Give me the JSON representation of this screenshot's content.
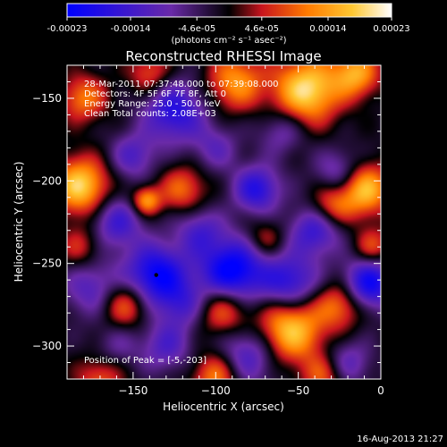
{
  "colorbar": {
    "tick_labels": [
      "-0.00023",
      "-0.00014",
      "-4.6e-05",
      "4.6e-05",
      "0.00014",
      "0.00023"
    ],
    "units_label": "(photons cm⁻² s⁻¹ asec⁻²)",
    "range": [
      -0.00023,
      0.00023
    ],
    "colors": [
      "#0000ff",
      "#6a2aa8",
      "#000000",
      "#c8141e",
      "#ff7a00",
      "#ffc832",
      "#ffffff"
    ]
  },
  "chart_data": {
    "type": "heatmap",
    "title": "Reconstructed RHESSI Image",
    "xlabel": "Heliocentric X (arcsec)",
    "ylabel": "Heliocentric Y (arcsec)",
    "xlim": [
      -190,
      0
    ],
    "ylim": [
      -320,
      -130
    ],
    "x_ticks": [
      -150,
      -100,
      -50,
      0
    ],
    "y_ticks": [
      -150,
      -200,
      -250,
      -300
    ],
    "x_tick_labels": [
      "−150",
      "−100",
      "−50",
      "0"
    ],
    "y_tick_labels": [
      "−150",
      "−200",
      "−250",
      "−300"
    ],
    "info_lines": [
      "28-Mar-2011 07:37:48.000 to 07:39:08.000",
      "Detectors: 4F 5F 6F 7F 8F, Att 0",
      "Energy Range: 25.0 - 50.0 keV",
      "Clean     Total counts: 2.08E+03"
    ],
    "peak_label": "Position of Peak = [-5,-203]",
    "marker_point": [
      -136,
      -257
    ],
    "blobs": [
      {
        "x": -90,
        "y": -255,
        "v": -1.0,
        "r": 14
      },
      {
        "x": -136,
        "y": -257,
        "v": -0.9,
        "r": 13
      },
      {
        "x": -7,
        "y": -262,
        "v": -0.85,
        "r": 11
      },
      {
        "x": -125,
        "y": -158,
        "v": -0.7,
        "r": 13
      },
      {
        "x": -55,
        "y": -262,
        "v": -0.7,
        "r": 12
      },
      {
        "x": -75,
        "y": -205,
        "v": -0.7,
        "r": 10
      },
      {
        "x": -160,
        "y": -225,
        "v": -0.55,
        "r": 11
      },
      {
        "x": -40,
        "y": -230,
        "v": -0.6,
        "r": 11
      },
      {
        "x": -80,
        "y": -305,
        "v": -0.55,
        "r": 13
      },
      {
        "x": -130,
        "y": -300,
        "v": -0.45,
        "r": 11
      },
      {
        "x": -175,
        "y": -265,
        "v": -0.45,
        "r": 12
      },
      {
        "x": -110,
        "y": -230,
        "v": -0.45,
        "r": 10
      },
      {
        "x": -25,
        "y": -195,
        "v": -0.45,
        "r": 10
      },
      {
        "x": -150,
        "y": -185,
        "v": -0.45,
        "r": 10
      },
      {
        "x": -60,
        "y": -170,
        "v": -0.35,
        "r": 10
      },
      {
        "x": -100,
        "y": -180,
        "v": -0.35,
        "r": 10
      },
      {
        "x": -20,
        "y": -310,
        "v": -0.4,
        "r": 10
      },
      {
        "x": -120,
        "y": -275,
        "v": -0.4,
        "r": 10
      },
      {
        "x": -160,
        "y": -300,
        "v": -0.25,
        "r": 10
      },
      {
        "x": -88,
        "y": -140,
        "v": 0.65,
        "r": 12
      },
      {
        "x": -45,
        "y": -145,
        "v": 0.95,
        "r": 14
      },
      {
        "x": -15,
        "y": -135,
        "v": 0.7,
        "r": 10
      },
      {
        "x": -10,
        "y": -205,
        "v": 0.85,
        "r": 11
      },
      {
        "x": -30,
        "y": -215,
        "v": 0.5,
        "r": 9
      },
      {
        "x": -182,
        "y": -203,
        "v": 0.9,
        "r": 12
      },
      {
        "x": -180,
        "y": -150,
        "v": 0.55,
        "r": 10
      },
      {
        "x": -140,
        "y": -135,
        "v": 0.45,
        "r": 9
      },
      {
        "x": -182,
        "y": -240,
        "v": 0.35,
        "r": 9
      },
      {
        "x": -55,
        "y": -290,
        "v": 0.9,
        "r": 14
      },
      {
        "x": -25,
        "y": -275,
        "v": 0.55,
        "r": 10
      },
      {
        "x": -95,
        "y": -278,
        "v": 0.6,
        "r": 11
      },
      {
        "x": -155,
        "y": -275,
        "v": 0.55,
        "r": 10
      },
      {
        "x": -120,
        "y": -205,
        "v": 0.5,
        "r": 10
      },
      {
        "x": -142,
        "y": -212,
        "v": 0.7,
        "r": 6
      },
      {
        "x": -100,
        "y": -318,
        "v": 0.6,
        "r": 10
      },
      {
        "x": -35,
        "y": -318,
        "v": 0.45,
        "r": 9
      },
      {
        "x": -170,
        "y": -320,
        "v": 0.45,
        "r": 10
      },
      {
        "x": -5,
        "y": -240,
        "v": 0.45,
        "r": 8
      },
      {
        "x": -70,
        "y": -235,
        "v": 0.35,
        "r": 8
      }
    ]
  },
  "timestamp": "16-Aug-2013 21:27"
}
